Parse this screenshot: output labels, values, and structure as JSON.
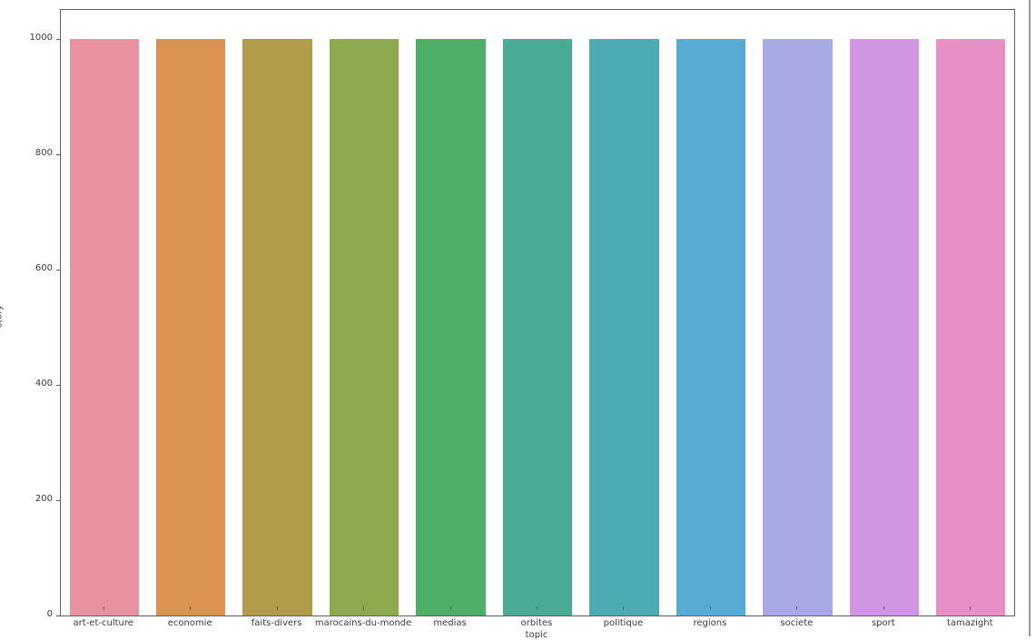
{
  "figure": {
    "background": "#ffffff",
    "spine_color": "#5f5f5f",
    "border_color": "#9a9a9a",
    "text_color": "#3a3a3a"
  },
  "chart_data": {
    "type": "bar",
    "title": "",
    "xlabel": "topic",
    "ylabel": "story",
    "categories": [
      "art-et-culture",
      "economie",
      "faits-divers",
      "marocains-du-monde",
      "medias",
      "orbites",
      "politique",
      "regions",
      "societe",
      "sport",
      "tamazight"
    ],
    "values": [
      1000,
      1000,
      1000,
      1000,
      1000,
      1000,
      1000,
      1000,
      1000,
      1000,
      1000
    ],
    "bar_colors": [
      "#e9929f",
      "#da9250",
      "#b29c4a",
      "#8caa4d",
      "#4daf67",
      "#49ab93",
      "#4caab2",
      "#55abd3",
      "#a8aae6",
      "#d295e2",
      "#e88fc6"
    ],
    "yticks": [
      0,
      200,
      400,
      600,
      800,
      1000
    ],
    "ylim": [
      0,
      1050
    ],
    "grid": false,
    "legend_position": "none",
    "bar_rel_width": 0.8
  }
}
